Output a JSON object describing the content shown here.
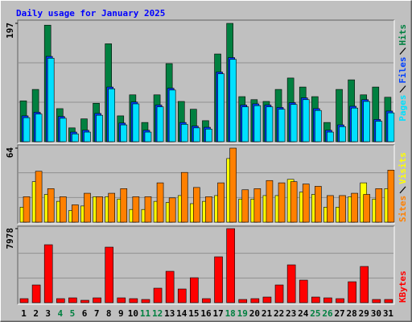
{
  "chart_data": [
    {
      "type": "bar",
      "title": "Daily usage for January 2025",
      "title_color": "#0000ff",
      "ylim": [
        0,
        197
      ],
      "yticks": [
        197
      ],
      "legend_position": "top",
      "series": [
        {
          "name": "Hits",
          "color": "#008040",
          "values": [
            68,
            87,
            194,
            55,
            23,
            38,
            64,
            163,
            43,
            78,
            32,
            78,
            130,
            67,
            54,
            35,
            146,
            197,
            75,
            70,
            67,
            87,
            106,
            91,
            75,
            32,
            87,
            103,
            78,
            91,
            74
          ]
        },
        {
          "name": "Files",
          "color": "#0040ff",
          "values": [
            43,
            49,
            142,
            42,
            16,
            19,
            47,
            91,
            31,
            66,
            19,
            61,
            89,
            32,
            26,
            24,
            116,
            140,
            61,
            63,
            61,
            57,
            65,
            73,
            55,
            19,
            28,
            59,
            70,
            37,
            51
          ]
        },
        {
          "name": "Pages",
          "color": "#00e0ff",
          "values": [
            40,
            46,
            139,
            39,
            13,
            16,
            44,
            88,
            28,
            63,
            16,
            58,
            86,
            29,
            23,
            21,
            113,
            137,
            58,
            60,
            58,
            54,
            62,
            70,
            52,
            16,
            25,
            56,
            67,
            34,
            48
          ]
        }
      ]
    },
    {
      "type": "bar",
      "ylim": [
        0,
        64
      ],
      "yticks": [
        64
      ],
      "legend_position": "bottom",
      "series": [
        {
          "name": "Visits",
          "color": "#ffff00",
          "values": [
            13,
            35,
            24,
            18,
            10,
            14,
            22,
            22,
            20,
            11,
            11,
            18,
            17,
            23,
            16,
            18,
            23,
            55,
            20,
            20,
            23,
            23,
            37,
            26,
            24,
            13,
            13,
            22,
            34,
            20,
            29
          ]
        },
        {
          "name": "Sites",
          "color": "#ff8000",
          "values": [
            22,
            44,
            29,
            22,
            15,
            25,
            22,
            25,
            29,
            22,
            22,
            34,
            21,
            43,
            30,
            22,
            34,
            64,
            28,
            29,
            36,
            34,
            35,
            33,
            31,
            23,
            23,
            25,
            24,
            29,
            45
          ]
        }
      ]
    },
    {
      "type": "bar",
      "ylim": [
        0,
        7978
      ],
      "yticks": [
        7978
      ],
      "legend_position": "bottom",
      "categories": [
        "1",
        "2",
        "3",
        "4",
        "5",
        "6",
        "7",
        "8",
        "9",
        "10",
        "11",
        "12",
        "13",
        "14",
        "15",
        "16",
        "17",
        "18",
        "19",
        "20",
        "21",
        "22",
        "23",
        "24",
        "25",
        "26",
        "27",
        "28",
        "29",
        "30",
        "31"
      ],
      "category_colors": [
        "#000000",
        "#000000",
        "#000000",
        "#008040",
        "#008040",
        "#000000",
        "#000000",
        "#000000",
        "#000000",
        "#000000",
        "#008040",
        "#008040",
        "#000000",
        "#000000",
        "#000000",
        "#000000",
        "#000000",
        "#008040",
        "#008040",
        "#000000",
        "#000000",
        "#000000",
        "#000000",
        "#000000",
        "#008040",
        "#008040",
        "#000000",
        "#000000",
        "#000000",
        "#000000",
        "#000000"
      ],
      "series": [
        {
          "name": "KBytes",
          "color": "#ff0000",
          "values": [
            434,
            1908,
            6243,
            434,
            520,
            260,
            520,
            5983,
            520,
            434,
            347,
            1561,
            3381,
            1474,
            2688,
            434,
            4942,
            7978,
            347,
            434,
            607,
            1908,
            4075,
            2428,
            607,
            520,
            434,
            2254,
            3902,
            347,
            347
          ]
        }
      ]
    }
  ]
}
